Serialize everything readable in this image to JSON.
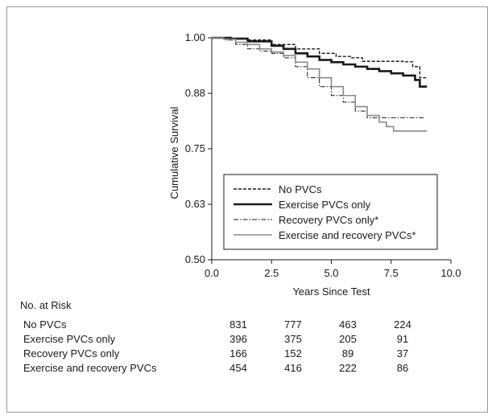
{
  "chart_data": {
    "type": "line",
    "ylabel": "Cumulative Survival",
    "xlabel": "Years Since Test",
    "xlim": [
      0,
      10
    ],
    "ylim": [
      0.5,
      1.0
    ],
    "x_ticks": [
      "0.0",
      "2.5",
      "5.0",
      "7.5",
      "10.0"
    ],
    "y_ticks": [
      "0.50",
      "0.63",
      "0.75",
      "0.88",
      "1.00"
    ],
    "grid": false,
    "legend_position": "bottom-left inside plot",
    "series": [
      {
        "name": "No PVCs",
        "color": "#1a1a1a",
        "style": "dashed",
        "points": [
          [
            0,
            1.0
          ],
          [
            0.8,
            0.999
          ],
          [
            1.5,
            0.995
          ],
          [
            2.5,
            0.985
          ],
          [
            3.5,
            0.975
          ],
          [
            4.5,
            0.965
          ],
          [
            5.2,
            0.958
          ],
          [
            5.8,
            0.955
          ],
          [
            6.3,
            0.947
          ],
          [
            6.8,
            0.947
          ],
          [
            7.2,
            0.947
          ],
          [
            7.6,
            0.947
          ],
          [
            8.0,
            0.946
          ],
          [
            8.4,
            0.935
          ],
          [
            8.7,
            0.91
          ],
          [
            9.0,
            0.908
          ]
        ]
      },
      {
        "name": "Exercise PVCs only",
        "color": "#1a1a1a",
        "style": "solid-thick",
        "points": [
          [
            0,
            1.0
          ],
          [
            0.8,
            0.998
          ],
          [
            1.5,
            0.992
          ],
          [
            2.5,
            0.982
          ],
          [
            3.0,
            0.975
          ],
          [
            3.5,
            0.965
          ],
          [
            4.0,
            0.958
          ],
          [
            4.5,
            0.95
          ],
          [
            5.0,
            0.945
          ],
          [
            5.5,
            0.94
          ],
          [
            6.0,
            0.935
          ],
          [
            6.5,
            0.93
          ],
          [
            7.0,
            0.925
          ],
          [
            7.5,
            0.92
          ],
          [
            8.0,
            0.915
          ],
          [
            8.5,
            0.905
          ],
          [
            8.7,
            0.89
          ],
          [
            9.0,
            0.89
          ]
        ]
      },
      {
        "name": "Recovery PVCs only*",
        "color": "#1a1a1a",
        "style": "dash-dot",
        "points": [
          [
            0,
            1.0
          ],
          [
            0.5,
            0.995
          ],
          [
            1.0,
            0.985
          ],
          [
            1.5,
            0.975
          ],
          [
            2.0,
            0.97
          ],
          [
            2.5,
            0.965
          ],
          [
            3.0,
            0.955
          ],
          [
            3.5,
            0.935
          ],
          [
            4.0,
            0.91
          ],
          [
            4.5,
            0.89
          ],
          [
            5.0,
            0.87
          ],
          [
            5.5,
            0.855
          ],
          [
            6.0,
            0.835
          ],
          [
            6.5,
            0.82
          ],
          [
            7.0,
            0.82
          ],
          [
            8.0,
            0.82
          ],
          [
            8.9,
            0.82
          ]
        ]
      },
      {
        "name": "Exercise and recovery PVCs*",
        "color": "#8a8a8a",
        "style": "solid",
        "points": [
          [
            0,
            1.0
          ],
          [
            0.5,
            0.997
          ],
          [
            1.0,
            0.99
          ],
          [
            1.5,
            0.985
          ],
          [
            2.0,
            0.975
          ],
          [
            2.5,
            0.968
          ],
          [
            3.0,
            0.96
          ],
          [
            3.5,
            0.945
          ],
          [
            4.0,
            0.93
          ],
          [
            4.5,
            0.91
          ],
          [
            5.0,
            0.89
          ],
          [
            5.5,
            0.87
          ],
          [
            6.0,
            0.845
          ],
          [
            6.5,
            0.825
          ],
          [
            7.0,
            0.81
          ],
          [
            7.3,
            0.8
          ],
          [
            7.6,
            0.79
          ],
          [
            8.0,
            0.79
          ],
          [
            9.0,
            0.79
          ]
        ]
      }
    ]
  },
  "risk_table": {
    "title": "No. at Risk",
    "rows": [
      {
        "label": "No PVCs",
        "values": [
          "831",
          "777",
          "463",
          "224"
        ]
      },
      {
        "label": "Exercise PVCs only",
        "values": [
          "396",
          "375",
          "205",
          "91"
        ]
      },
      {
        "label": "Recovery PVCs only",
        "values": [
          "166",
          "152",
          "89",
          "37"
        ]
      },
      {
        "label": "Exercise and recovery PVCs",
        "values": [
          "454",
          "416",
          "222",
          "86"
        ]
      }
    ]
  }
}
